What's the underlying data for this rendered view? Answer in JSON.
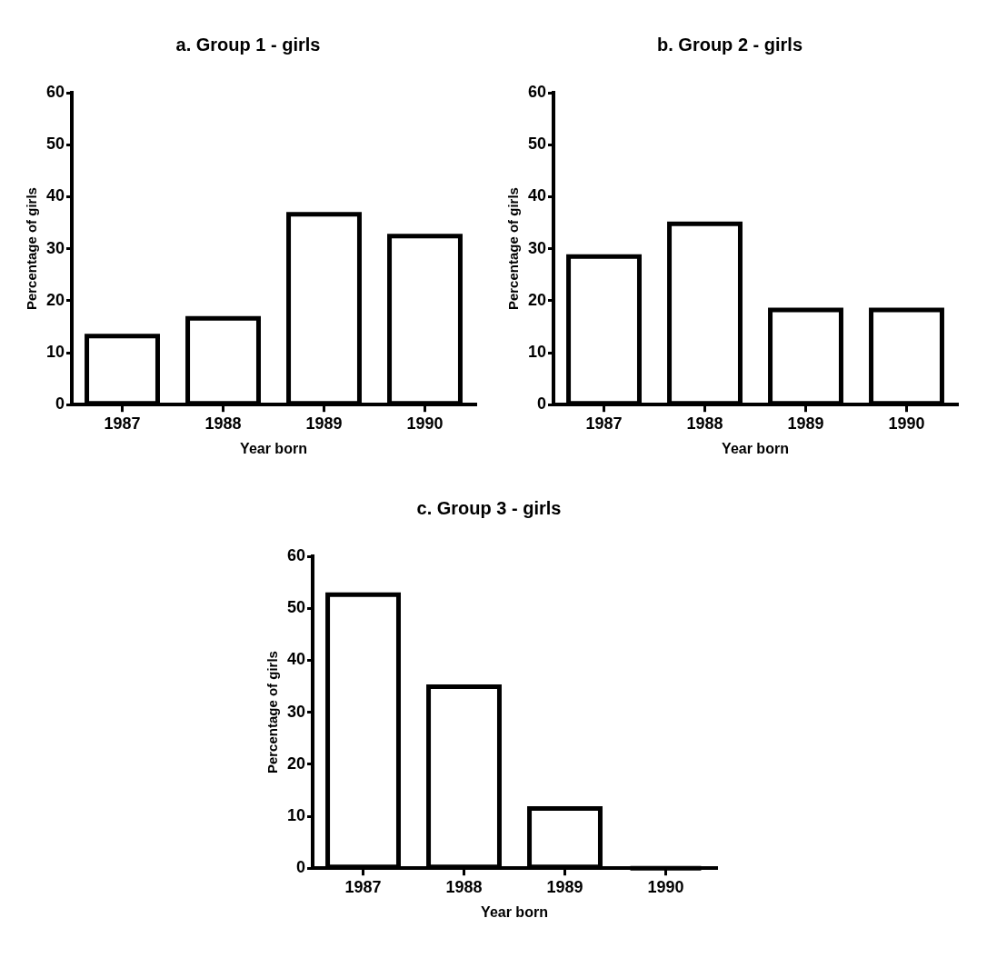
{
  "chart_data": [
    {
      "type": "bar",
      "title": "a. Group 1 - girls",
      "xlabel": "Year born",
      "ylabel": "Percentage of girls",
      "categories": [
        "1987",
        "1988",
        "1989",
        "1990"
      ],
      "values": [
        13.2,
        16.6,
        36.6,
        32.4
      ],
      "color": "#000000",
      "ylim": [
        0,
        60
      ],
      "yticks": [
        0,
        10,
        20,
        30,
        40,
        50,
        60
      ],
      "grid": false,
      "legend": false
    },
    {
      "type": "bar",
      "title": "b. Group 2 - girls",
      "xlabel": "Year born",
      "ylabel": "Percentage of girls",
      "categories": [
        "1987",
        "1988",
        "1989",
        "1990"
      ],
      "values": [
        28.5,
        34.8,
        18.2,
        18.2
      ],
      "color": "#000000",
      "ylim": [
        0,
        60
      ],
      "yticks": [
        0,
        10,
        20,
        30,
        40,
        50,
        60
      ],
      "grid": false,
      "legend": false
    },
    {
      "type": "bar",
      "title": "c. Group 3 - girls",
      "xlabel": "Year born",
      "ylabel": "Percentage of girls",
      "categories": [
        "1987",
        "1988",
        "1989",
        "1990"
      ],
      "values": [
        52.6,
        34.9,
        11.5,
        0
      ],
      "color": "#000000",
      "ylim": [
        0,
        60
      ],
      "yticks": [
        0,
        10,
        20,
        30,
        40,
        50,
        60
      ],
      "grid": false,
      "legend": false
    }
  ]
}
